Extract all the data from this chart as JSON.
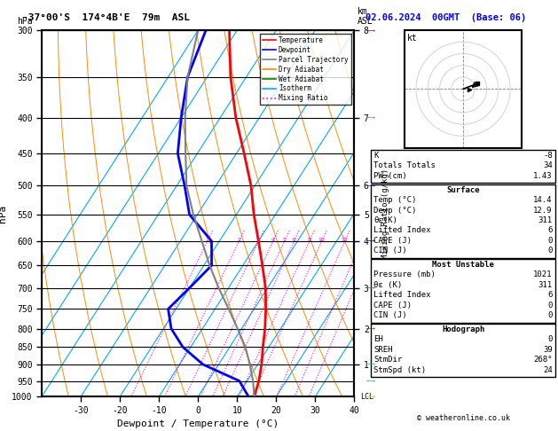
{
  "title_left": "-37°00'S  174°4B'E  79m  ASL",
  "title_right": "02.06.2024  00GMT  (Base: 06)",
  "xlabel": "Dewpoint / Temperature (°C)",
  "ylabel_left": "hPa",
  "pressure_levels": [
    300,
    350,
    400,
    450,
    500,
    550,
    600,
    650,
    700,
    750,
    800,
    850,
    900,
    950,
    1000
  ],
  "temp_ticks": [
    -30,
    -20,
    -10,
    0,
    10,
    20,
    30,
    40
  ],
  "km_labels": {
    "300": "8",
    "400": "7",
    "500": "6",
    "550": "5",
    "600": "4",
    "700": "3",
    "800": "2",
    "900": "1"
  },
  "mixing_ratio_values": [
    1,
    2,
    3,
    4,
    5,
    6,
    8,
    10,
    15,
    20,
    25
  ],
  "temperature_profile": {
    "pressure": [
      1000,
      950,
      900,
      850,
      800,
      750,
      700,
      650,
      600,
      550,
      500,
      450,
      400,
      350,
      300
    ],
    "temp": [
      14.4,
      13.0,
      11.0,
      8.5,
      6.0,
      3.0,
      -0.5,
      -5.0,
      -10.0,
      -15.5,
      -21.0,
      -28.0,
      -36.0,
      -44.0,
      -52.0
    ]
  },
  "dewpoint_profile": {
    "pressure": [
      1000,
      950,
      900,
      850,
      800,
      750,
      700,
      650,
      600,
      550,
      500,
      450,
      400,
      350,
      300
    ],
    "temp": [
      12.9,
      8.0,
      -4.0,
      -12.0,
      -18.0,
      -22.0,
      -20.0,
      -18.0,
      -22.0,
      -32.0,
      -38.0,
      -45.0,
      -50.0,
      -55.0,
      -58.0
    ]
  },
  "parcel_profile": {
    "pressure": [
      1000,
      950,
      900,
      850,
      800,
      750,
      700,
      650,
      600,
      550,
      500,
      450,
      400,
      350,
      300
    ],
    "temp": [
      14.4,
      11.5,
      8.0,
      4.0,
      -1.0,
      -6.5,
      -12.5,
      -18.5,
      -24.5,
      -31.0,
      -37.5,
      -43.0,
      -49.0,
      -55.0,
      -60.0
    ]
  },
  "colors": {
    "temperature": "#ff0000",
    "dewpoint": "#0000ff",
    "parcel": "#808080",
    "dry_adiabat": "#ff8c00",
    "wet_adiabat": "#008800",
    "isotherm": "#00aaff",
    "mixing_ratio": "#ff00ff",
    "background": "#ffffff",
    "grid": "#000000"
  },
  "legend_items": [
    {
      "label": "Temperature",
      "color": "#ff0000",
      "style": "solid"
    },
    {
      "label": "Dewpoint",
      "color": "#0000ff",
      "style": "solid"
    },
    {
      "label": "Parcel Trajectory",
      "color": "#808080",
      "style": "solid"
    },
    {
      "label": "Dry Adiabat",
      "color": "#ff8c00",
      "style": "solid"
    },
    {
      "label": "Wet Adiabat",
      "color": "#008800",
      "style": "solid"
    },
    {
      "label": "Isotherm",
      "color": "#00aaff",
      "style": "solid"
    },
    {
      "label": "Mixing Ratio",
      "color": "#ff00ff",
      "style": "dotted"
    }
  ],
  "stats": {
    "K": "-8",
    "Totals Totals": "34",
    "PW (cm)": "1.43",
    "Surface_rows": [
      [
        "Temp (°C)",
        "14.4"
      ],
      [
        "Dewp (°C)",
        "12.9"
      ],
      [
        "θε(K)",
        "311"
      ],
      [
        "Lifted Index",
        "6"
      ],
      [
        "CAPE (J)",
        "0"
      ],
      [
        "CIN (J)",
        "0"
      ]
    ],
    "MostUnstable_rows": [
      [
        "Pressure (mb)",
        "1021"
      ],
      [
        "θε (K)",
        "311"
      ],
      [
        "Lifted Index",
        "6"
      ],
      [
        "CAPE (J)",
        "0"
      ],
      [
        "CIN (J)",
        "0"
      ]
    ],
    "Hodograph_rows": [
      [
        "EH",
        "0"
      ],
      [
        "SREH",
        "39"
      ],
      [
        "StmDir",
        "268°"
      ],
      [
        "StmSpd (kt)",
        "24"
      ]
    ]
  },
  "wind_barb_colors": [
    "#cc0000",
    "#cc00cc",
    "#6600cc",
    "#0000cc",
    "#0088cc",
    "#008800",
    "#88cc00",
    "#00cccc",
    "#00cc88",
    "#cccc00"
  ],
  "P_min": 300,
  "P_max": 1000,
  "T_min": -40,
  "T_max": 40,
  "skew_amount": 0.75
}
